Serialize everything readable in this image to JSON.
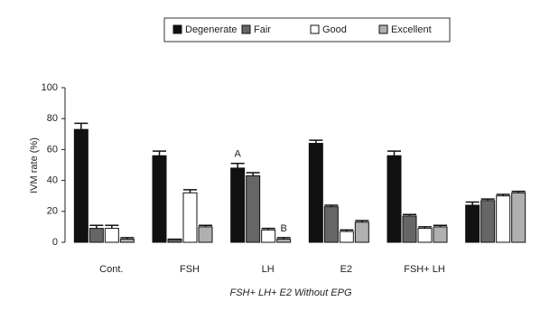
{
  "chart_data": {
    "type": "bar",
    "y_label": "IVM rate (%)",
    "x_label": "FSH+ LH+ E2  Without EPG",
    "categories": [
      "Cont.",
      "FSH",
      "LH",
      "E2",
      "FSH+ LH",
      null
    ],
    "series": [
      {
        "name": "Degenerate",
        "color": "#111111",
        "values": [
          73,
          56,
          48,
          64,
          56,
          24
        ],
        "errors": [
          4,
          3,
          3,
          2,
          3,
          2
        ]
      },
      {
        "name": "Fair",
        "color": "#666666",
        "values": [
          9,
          2,
          43,
          23,
          17,
          27
        ],
        "errors": [
          2,
          0,
          2,
          1,
          1,
          1
        ]
      },
      {
        "name": "Good",
        "color": "#ffffff",
        "values": [
          9,
          32,
          8,
          7,
          9,
          30
        ],
        "errors": [
          2,
          2,
          1,
          1,
          1,
          1
        ]
      },
      {
        "name": "Excellent",
        "color": "#b0b0b0",
        "values": [
          2,
          10,
          2,
          13,
          10,
          32
        ],
        "errors": [
          1,
          1,
          1,
          1,
          1,
          1
        ]
      }
    ],
    "annotations": [
      {
        "text": "A",
        "series": 0,
        "category": 2
      },
      {
        "text": "B",
        "series": 3,
        "category": 2
      }
    ],
    "ylim": [
      0,
      100
    ],
    "yticks": [
      0,
      20,
      40,
      60,
      80,
      100
    ]
  }
}
